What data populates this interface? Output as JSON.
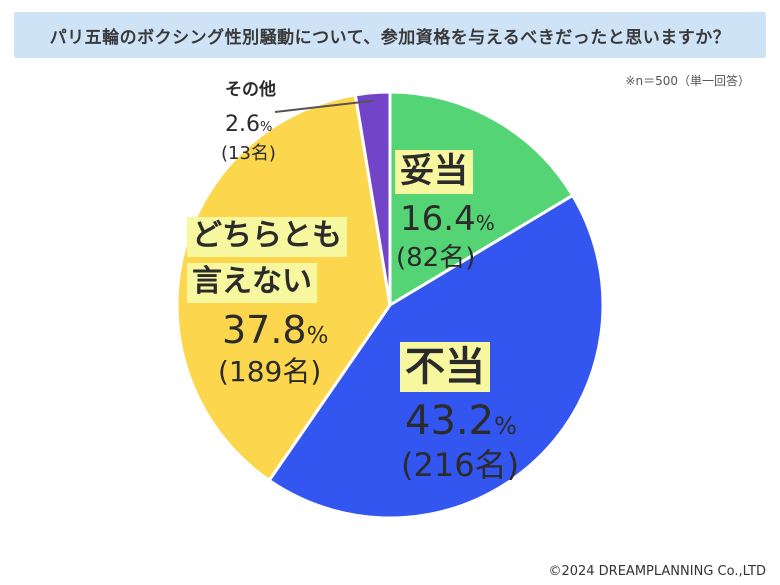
{
  "header": {
    "title": "パリ五輪のボクシング性別騒動について、参加資格を与えるべきだったと思いますか？"
  },
  "note": "※n＝500（単一回答）",
  "credit": "©2024 DREAMPLANNING Co.,LTD",
  "chart_data": {
    "type": "pie",
    "title": "パリ五輪のボクシング性別騒動について、参加資格を与えるべきだったと思いますか？",
    "unit": "%",
    "slices": [
      {
        "label": "妥当",
        "label_lines": [
          "妥当"
        ],
        "value": 16.4,
        "pct_text": "16.4",
        "count_text": "(82名)",
        "color": "#55d475"
      },
      {
        "label": "不当",
        "label_lines": [
          "不当"
        ],
        "value": 43.2,
        "pct_text": "43.2",
        "count_text": "(216名)",
        "color": "#3355f0"
      },
      {
        "label": "どちらとも言えない",
        "label_lines": [
          "どちらとも",
          "言えない"
        ],
        "value": 37.8,
        "pct_text": "37.8",
        "count_text": "(189名)",
        "color": "#fcd74e"
      },
      {
        "label": "その他",
        "label_lines": [
          "その他"
        ],
        "value": 2.6,
        "pct_text": "2.6",
        "count_text": "(13名)",
        "color": "#7244c8"
      }
    ],
    "pct_unit": "%",
    "start_angle_deg": 0,
    "direction": "clockwise"
  }
}
